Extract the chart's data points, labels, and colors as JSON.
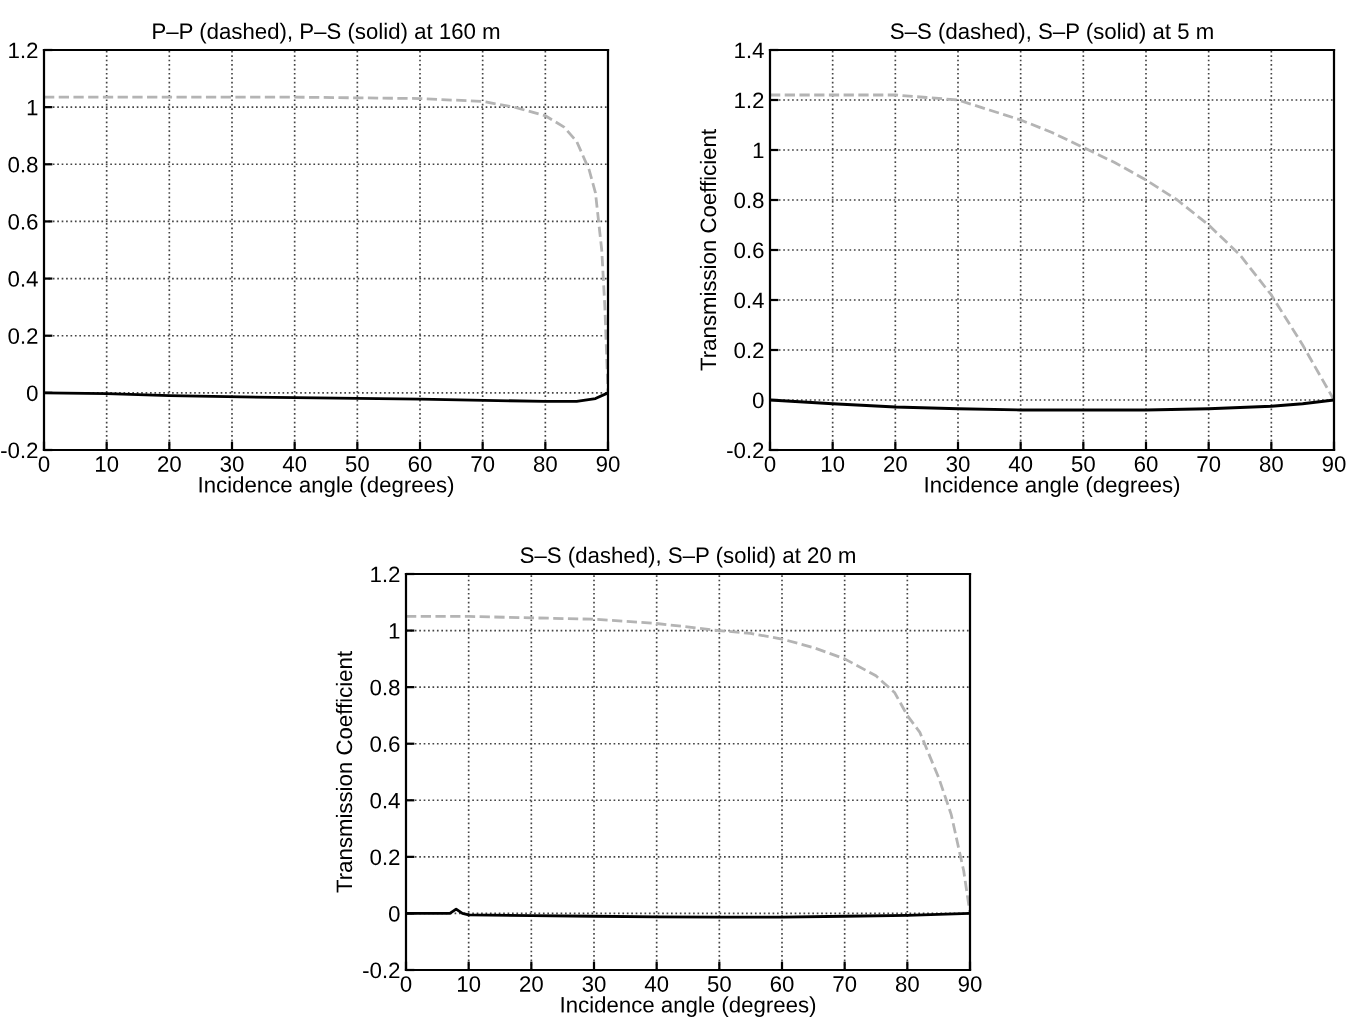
{
  "chart_data": [
    {
      "type": "line",
      "title": "P–P (dashed), P–S (solid) at 160 m",
      "xlabel": "Incidence angle (degrees)",
      "xlim": [
        0,
        90
      ],
      "xticks": [
        0,
        10,
        20,
        30,
        40,
        50,
        60,
        70,
        80,
        90
      ],
      "ylim": [
        -0.2,
        1.2
      ],
      "yticks": [
        -0.2,
        0,
        0.2,
        0.4,
        0.6,
        0.8,
        1,
        1.2
      ],
      "grid": true,
      "series": [
        {
          "color": "#b4b4b4",
          "line_style": "dashed",
          "x": [
            0,
            20,
            40,
            60,
            70,
            75,
            80,
            83,
            85,
            87,
            88,
            89,
            89.5,
            90
          ],
          "values": [
            1.035,
            1.035,
            1.035,
            1.03,
            1.02,
            1.0,
            0.97,
            0.93,
            0.88,
            0.78,
            0.7,
            0.5,
            0.3,
            0
          ]
        },
        {
          "color": "#000000",
          "line_style": "solid",
          "x": [
            0,
            10,
            20,
            40,
            60,
            80,
            85,
            88,
            90
          ],
          "values": [
            0,
            -0.003,
            -0.01,
            -0.017,
            -0.022,
            -0.03,
            -0.03,
            -0.02,
            0
          ]
        }
      ]
    },
    {
      "type": "line",
      "title": "S–S (dashed), S–P (solid) at 5 m",
      "xlabel": "Incidence angle (degrees)",
      "ylabel": "Transmission Coefficient",
      "xlim": [
        0,
        90
      ],
      "xticks": [
        0,
        10,
        20,
        30,
        40,
        50,
        60,
        70,
        80,
        90
      ],
      "ylim": [
        -0.2,
        1.4
      ],
      "yticks": [
        -0.2,
        0,
        0.2,
        0.4,
        0.6,
        0.8,
        1,
        1.2,
        1.4
      ],
      "grid": true,
      "series": [
        {
          "color": "#b4b4b4",
          "line_style": "dashed",
          "x": [
            0,
            10,
            20,
            25,
            30,
            35,
            40,
            45,
            50,
            55,
            60,
            65,
            70,
            75,
            80,
            85,
            90
          ],
          "values": [
            1.22,
            1.22,
            1.22,
            1.21,
            1.2,
            1.16,
            1.12,
            1.07,
            1.01,
            0.95,
            0.88,
            0.8,
            0.7,
            0.58,
            0.42,
            0.22,
            0
          ]
        },
        {
          "color": "#000000",
          "line_style": "solid",
          "x": [
            0,
            10,
            20,
            30,
            40,
            50,
            60,
            70,
            80,
            85,
            90
          ],
          "values": [
            0,
            -0.015,
            -0.028,
            -0.035,
            -0.04,
            -0.04,
            -0.04,
            -0.035,
            -0.025,
            -0.015,
            0
          ]
        }
      ]
    },
    {
      "type": "line",
      "title": "S–S (dashed), S–P (solid) at 20 m",
      "xlabel": "Incidence angle (degrees)",
      "ylabel": "Transmission Coefficient",
      "xlim": [
        0,
        90
      ],
      "xticks": [
        0,
        10,
        20,
        30,
        40,
        50,
        60,
        70,
        80,
        90
      ],
      "ylim": [
        -0.2,
        1.2
      ],
      "yticks": [
        -0.2,
        0,
        0.2,
        0.4,
        0.6,
        0.8,
        1,
        1.2
      ],
      "grid": true,
      "series": [
        {
          "color": "#b4b4b4",
          "line_style": "dashed",
          "x": [
            0,
            10,
            20,
            30,
            40,
            50,
            55,
            60,
            65,
            70,
            75,
            78,
            80,
            82,
            85,
            87,
            88,
            89,
            90
          ],
          "values": [
            1.05,
            1.05,
            1.045,
            1.04,
            1.025,
            1.0,
            0.99,
            0.97,
            0.94,
            0.9,
            0.84,
            0.78,
            0.7,
            0.64,
            0.48,
            0.35,
            0.25,
            0.15,
            0
          ]
        },
        {
          "color": "#000000",
          "line_style": "solid",
          "x": [
            0,
            7,
            8,
            9,
            10,
            20,
            30,
            40,
            50,
            60,
            70,
            80,
            90
          ],
          "values": [
            0,
            0,
            0.015,
            0,
            -0.005,
            -0.008,
            -0.01,
            -0.012,
            -0.013,
            -0.013,
            -0.01,
            -0.007,
            0
          ]
        }
      ]
    }
  ]
}
